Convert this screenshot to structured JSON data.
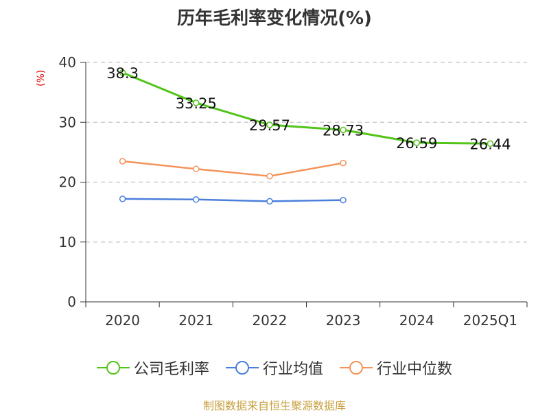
{
  "chart_data": {
    "type": "line",
    "title": "历年毛利率变化情况(%)",
    "ylabel": "(%)",
    "categories": [
      "2020",
      "2021",
      "2022",
      "2023",
      "2024",
      "2025Q1"
    ],
    "ylim": [
      0,
      40
    ],
    "yticks": [
      0,
      10,
      20,
      30,
      40
    ],
    "grid": true,
    "legend_position": "bottom",
    "series": [
      {
        "name": "公司毛利率",
        "color": "#52c41a",
        "labeled": true,
        "values": [
          38.3,
          33.25,
          29.57,
          28.73,
          26.59,
          26.44
        ],
        "labels": [
          "38.3",
          "33.25",
          "29.57",
          "28.73",
          "26.59",
          "26.44"
        ]
      },
      {
        "name": "行业均值",
        "color": "#4a7fdc",
        "labeled": false,
        "values": [
          17.2,
          17.1,
          16.8,
          17.0,
          null,
          null
        ]
      },
      {
        "name": "行业中位数",
        "color": "#f4935a",
        "labeled": false,
        "values": [
          23.5,
          22.2,
          21.0,
          23.2,
          null,
          null
        ]
      }
    ]
  },
  "footer": "制图数据来自恒生聚源数据库"
}
